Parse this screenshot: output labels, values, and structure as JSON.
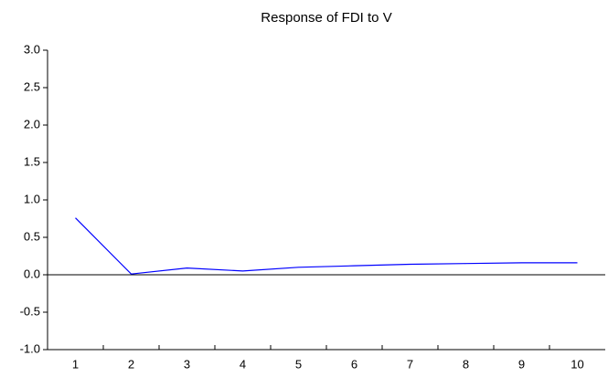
{
  "chart_data": {
    "type": "line",
    "title": "Response of FDI to V",
    "categories": [
      "1",
      "2",
      "3",
      "4",
      "5",
      "6",
      "7",
      "8",
      "9",
      "10"
    ],
    "series": [
      {
        "color": "#0000ff",
        "values": [
          0.76,
          0.01,
          0.09,
          0.05,
          0.1,
          0.12,
          0.14,
          0.15,
          0.16,
          0.16
        ]
      }
    ],
    "ylim": [
      -1.0,
      3.0
    ],
    "yticks": [
      {
        "value": -1.0,
        "label": "-1.0"
      },
      {
        "value": -0.5,
        "label": "-0.5"
      },
      {
        "value": 0.0,
        "label": "0.0"
      },
      {
        "value": 0.5,
        "label": "0.5"
      },
      {
        "value": 1.0,
        "label": "1.0"
      },
      {
        "value": 1.5,
        "label": "1.5"
      },
      {
        "value": 2.0,
        "label": "2.0"
      },
      {
        "value": 2.5,
        "label": "2.5"
      },
      {
        "value": 3.0,
        "label": "3.0"
      }
    ],
    "zero_line": true
  }
}
